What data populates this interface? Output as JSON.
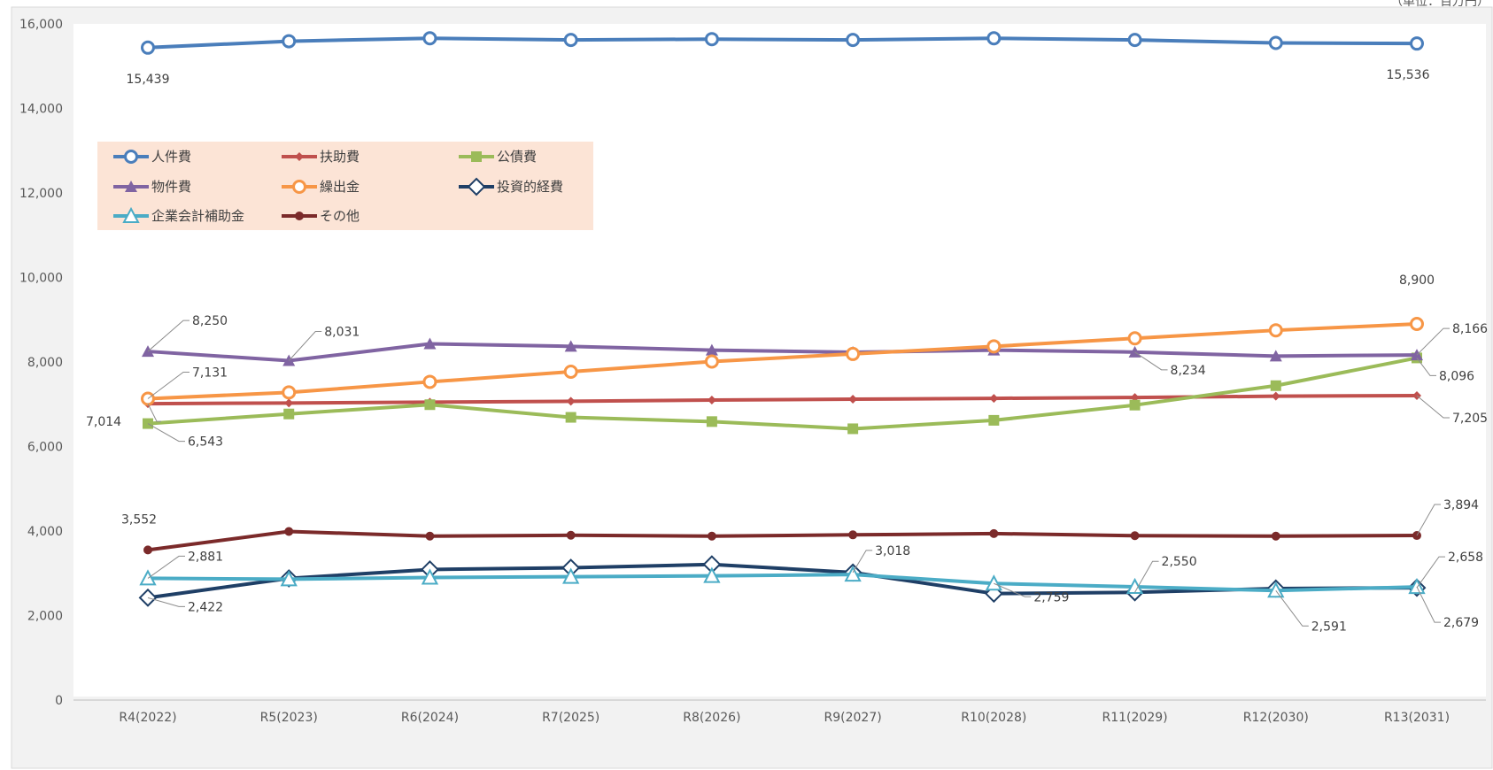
{
  "chart_data": {
    "type": "line",
    "title": "",
    "xlabel": "",
    "ylabel": "",
    "ylim": [
      0,
      16000
    ],
    "yticks": [
      0,
      2000,
      4000,
      6000,
      8000,
      10000,
      12000,
      14000,
      16000
    ],
    "ytick_labels": [
      "0",
      "2,000",
      "4,000",
      "6,000",
      "8,000",
      "10,000",
      "12,000",
      "14,000",
      "16,000"
    ],
    "grid": false,
    "legend_position": "upper-left inside plot",
    "corner_unit_text": "（単位：百万円）",
    "categories": [
      "R4(2022)",
      "R5(2023)",
      "R6(2024)",
      "R7(2025)",
      "R8(2026)",
      "R9(2027)",
      "R10(2028)",
      "R11(2029)",
      "R12(2030)",
      "R13(2031)"
    ],
    "series": [
      {
        "name": "人件費",
        "color": "#4a7ebb",
        "marker": "circle-open",
        "values": [
          15439,
          15590,
          15660,
          15620,
          15640,
          15620,
          15660,
          15620,
          15550,
          15536
        ]
      },
      {
        "name": "扶助費",
        "color": "#c0504d",
        "marker": "diamond-small",
        "values": [
          7014,
          7030,
          7050,
          7070,
          7100,
          7120,
          7140,
          7160,
          7190,
          7205
        ]
      },
      {
        "name": "公債費",
        "color": "#9bbb59",
        "marker": "square",
        "values": [
          6543,
          6770,
          6990,
          6690,
          6590,
          6420,
          6620,
          6980,
          7440,
          8096
        ]
      },
      {
        "name": "物件費",
        "color": "#8064a2",
        "marker": "triangle",
        "values": [
          8250,
          8031,
          8430,
          8370,
          8280,
          8230,
          8280,
          8234,
          8140,
          8166
        ]
      },
      {
        "name": "繰出金",
        "color": "#f79646",
        "marker": "circle-open",
        "values": [
          7131,
          7280,
          7530,
          7770,
          8010,
          8190,
          8370,
          8560,
          8750,
          8900
        ]
      },
      {
        "name": "投資的経費",
        "color": "#1f3f66",
        "marker": "diamond-open",
        "values": [
          2422,
          2880,
          3090,
          3130,
          3210,
          3018,
          2520,
          2550,
          2640,
          2658
        ]
      },
      {
        "name": "企業会計補助金",
        "color": "#4bacc6",
        "marker": "triangle-open",
        "values": [
          2881,
          2860,
          2900,
          2920,
          2940,
          2970,
          2759,
          2680,
          2591,
          2679
        ]
      },
      {
        "name": "その他",
        "color": "#7b2a2a",
        "marker": "circle-small",
        "values": [
          3552,
          3990,
          3880,
          3900,
          3880,
          3910,
          3940,
          3890,
          3880,
          3894
        ]
      }
    ],
    "data_labels": [
      {
        "series": 0,
        "index": 0,
        "text": "15,439"
      },
      {
        "series": 0,
        "index": 9,
        "text": "15,536"
      },
      {
        "series": 3,
        "index": 0,
        "text": "8,250"
      },
      {
        "series": 3,
        "index": 1,
        "text": "8,031"
      },
      {
        "series": 4,
        "index": 0,
        "text": "7,131"
      },
      {
        "series": 1,
        "index": 0,
        "text": "7,014"
      },
      {
        "series": 2,
        "index": 0,
        "text": "6,543"
      },
      {
        "series": 4,
        "index": 9,
        "text": "8,900"
      },
      {
        "series": 3,
        "index": 9,
        "text": "8,166"
      },
      {
        "series": 3,
        "index": 7,
        "text": "8,234"
      },
      {
        "series": 2,
        "index": 9,
        "text": "8,096"
      },
      {
        "series": 1,
        "index": 9,
        "text": "7,205"
      },
      {
        "series": 7,
        "index": 0,
        "text": "3,552"
      },
      {
        "series": 6,
        "index": 0,
        "text": "2,881"
      },
      {
        "series": 5,
        "index": 0,
        "text": "2,422"
      },
      {
        "series": 5,
        "index": 5,
        "text": "3,018"
      },
      {
        "series": 6,
        "index": 6,
        "text": "2,759"
      },
      {
        "series": 5,
        "index": 7,
        "text": "2,550"
      },
      {
        "series": 6,
        "index": 8,
        "text": "2,591"
      },
      {
        "series": 7,
        "index": 9,
        "text": "3,894"
      },
      {
        "series": 5,
        "index": 9,
        "text": "2,658"
      },
      {
        "series": 6,
        "index": 9,
        "text": "2,679"
      }
    ]
  }
}
